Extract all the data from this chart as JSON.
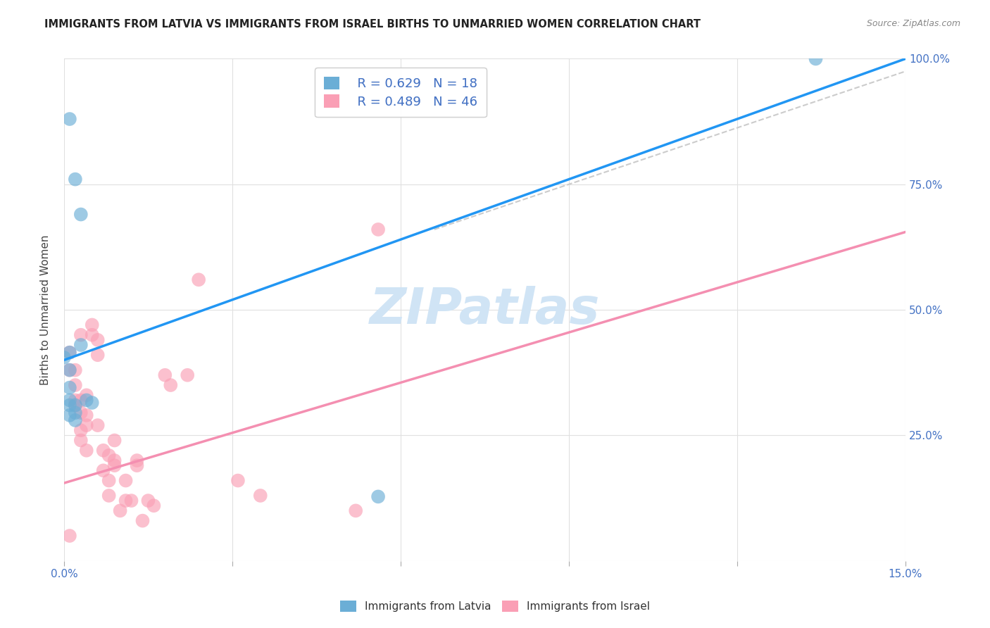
{
  "title": "IMMIGRANTS FROM LATVIA VS IMMIGRANTS FROM ISRAEL BIRTHS TO UNMARRIED WOMEN CORRELATION CHART",
  "source": "Source: ZipAtlas.com",
  "ylabel": "Births to Unmarried Women",
  "x_min": 0.0,
  "x_max": 0.15,
  "y_min": 0.0,
  "y_max": 1.0,
  "x_tick_positions": [
    0.0,
    0.03,
    0.06,
    0.09,
    0.12,
    0.15
  ],
  "x_tick_labels": [
    "0.0%",
    "",
    "",
    "",
    "",
    "15.0%"
  ],
  "y_tick_positions": [
    0.0,
    0.25,
    0.5,
    0.75,
    1.0
  ],
  "y_tick_labels_right": [
    "",
    "25.0%",
    "50.0%",
    "75.0%",
    "100.0%"
  ],
  "latvia_R": 0.629,
  "latvia_N": 18,
  "israel_R": 0.489,
  "israel_N": 46,
  "latvia_color": "#6baed6",
  "israel_color": "#fa9fb5",
  "latvia_scatter_x": [
    0.001,
    0.002,
    0.003,
    0.003,
    0.004,
    0.005,
    0.001,
    0.002,
    0.001,
    0.001,
    0.002,
    0.002,
    0.001,
    0.0,
    0.001,
    0.056,
    0.001,
    0.134
  ],
  "latvia_scatter_y": [
    0.415,
    0.76,
    0.69,
    0.43,
    0.32,
    0.315,
    0.32,
    0.295,
    0.31,
    0.29,
    0.28,
    0.31,
    0.38,
    0.405,
    0.345,
    0.128,
    0.88,
    1.0
  ],
  "israel_scatter_x": [
    0.001,
    0.002,
    0.003,
    0.001,
    0.002,
    0.002,
    0.003,
    0.003,
    0.002,
    0.003,
    0.003,
    0.004,
    0.004,
    0.004,
    0.004,
    0.005,
    0.005,
    0.006,
    0.006,
    0.006,
    0.007,
    0.007,
    0.008,
    0.008,
    0.008,
    0.009,
    0.009,
    0.009,
    0.01,
    0.011,
    0.011,
    0.012,
    0.013,
    0.013,
    0.014,
    0.015,
    0.016,
    0.018,
    0.019,
    0.022,
    0.024,
    0.031,
    0.035,
    0.052,
    0.056,
    0.001
  ],
  "israel_scatter_y": [
    0.415,
    0.38,
    0.45,
    0.38,
    0.35,
    0.32,
    0.32,
    0.295,
    0.31,
    0.26,
    0.24,
    0.22,
    0.29,
    0.27,
    0.33,
    0.45,
    0.47,
    0.44,
    0.41,
    0.27,
    0.22,
    0.18,
    0.21,
    0.16,
    0.13,
    0.19,
    0.2,
    0.24,
    0.1,
    0.16,
    0.12,
    0.12,
    0.19,
    0.2,
    0.08,
    0.12,
    0.11,
    0.37,
    0.35,
    0.37,
    0.56,
    0.16,
    0.13,
    0.1,
    0.66,
    0.05
  ],
  "latvia_line_x": [
    0.0,
    0.15
  ],
  "latvia_line_y": [
    0.4,
    1.0
  ],
  "israel_line_x": [
    0.0,
    0.15
  ],
  "israel_line_y": [
    0.155,
    0.655
  ],
  "diagonal_line_x": [
    0.066,
    0.15
  ],
  "diagonal_line_y": [
    0.66,
    0.975
  ],
  "blue_line_color": "#2196F3",
  "pink_line_color": "#F48FB1",
  "dash_line_color": "#cccccc",
  "background_color": "#ffffff",
  "grid_color": "#e0e0e0",
  "title_color": "#222222",
  "axis_tick_color": "#4472c4",
  "legend_text_color": "#4472c4",
  "watermark_text": "ZIPatlas",
  "watermark_color": "#d0e4f5",
  "watermark_fontsize": 52
}
